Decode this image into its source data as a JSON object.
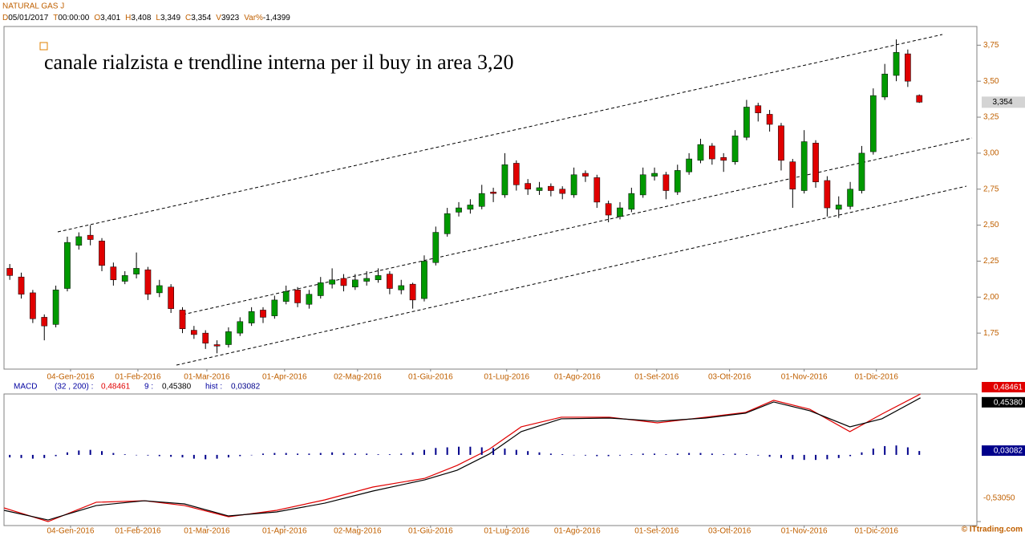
{
  "header": {
    "symbol": "NATURAL GAS J",
    "fields": [
      {
        "key": "D",
        "text": "05/01/2017"
      },
      {
        "key": "T",
        "text": "00:00:00"
      },
      {
        "key": "O",
        "text": "3,401"
      },
      {
        "key": "H",
        "text": "3,408"
      },
      {
        "key": "L",
        "text": "3,349"
      },
      {
        "key": "C",
        "text": "3,354"
      },
      {
        "key": "V",
        "text": "3923"
      },
      {
        "key": "Var%",
        "text": "-1,4399"
      }
    ]
  },
  "footer": "© ITtrading.com",
  "chart_data": [
    {
      "type": "candlestick",
      "annotation": "canale rialzista e trendline interna per il buy in area 3,20",
      "up_color": "#009900",
      "down_color": "#e00000",
      "xlim": [
        0,
        84.5
      ],
      "xticks": [
        {
          "value": 5.78,
          "label": "04-Gen-2016"
        },
        {
          "value": 11.63,
          "label": "01-Feb-2016"
        },
        {
          "value": 17.62,
          "label": "01-Mar-2016"
        },
        {
          "value": 24.37,
          "label": "01-Apr-2016"
        },
        {
          "value": 30.71,
          "label": "02-Mag-2016"
        },
        {
          "value": 37.05,
          "label": "01-Giu-2016"
        },
        {
          "value": 43.66,
          "label": "01-Lug-2016"
        },
        {
          "value": 49.79,
          "label": "01-Ago-2016"
        },
        {
          "value": 56.69,
          "label": "01-Set-2016"
        },
        {
          "value": 63.02,
          "label": "03-Ott-2016"
        },
        {
          "value": 69.5,
          "label": "01-Nov-2016"
        },
        {
          "value": 75.77,
          "label": "01-Dic-2016"
        }
      ],
      "ylim": [
        1.5,
        3.88
      ],
      "yticks": [
        {
          "value": 1.75,
          "label": "1,75"
        },
        {
          "value": 2,
          "label": "2,00"
        },
        {
          "value": 2.25,
          "label": "2,25"
        },
        {
          "value": 2.5,
          "label": "2,50"
        },
        {
          "value": 2.75,
          "label": "2,75"
        },
        {
          "value": 3,
          "label": "3,00"
        },
        {
          "value": 3.25,
          "label": "3,25"
        },
        {
          "value": 3.5,
          "label": "3,50"
        },
        {
          "value": 3.75,
          "label": "3,75"
        }
      ],
      "ohlc": [
        [
          2.2,
          2.23,
          2.12,
          2.15
        ],
        [
          2.14,
          2.17,
          1.99,
          2.02
        ],
        [
          2.03,
          2.05,
          1.82,
          1.85
        ],
        [
          1.86,
          1.88,
          1.7,
          1.8
        ],
        [
          1.81,
          2.08,
          1.79,
          2.05
        ],
        [
          2.06,
          2.42,
          2.04,
          2.38
        ],
        [
          2.36,
          2.45,
          2.33,
          2.42
        ],
        [
          2.43,
          2.5,
          2.36,
          2.4
        ],
        [
          2.39,
          2.41,
          2.18,
          2.22
        ],
        [
          2.21,
          2.24,
          2.08,
          2.12
        ],
        [
          2.11,
          2.18,
          2.09,
          2.15
        ],
        [
          2.16,
          2.31,
          2.13,
          2.2
        ],
        [
          2.19,
          2.21,
          1.98,
          2.02
        ],
        [
          2.03,
          2.12,
          2.0,
          2.08
        ],
        [
          2.07,
          2.09,
          1.89,
          1.92
        ],
        [
          1.91,
          1.93,
          1.75,
          1.78
        ],
        [
          1.77,
          1.8,
          1.71,
          1.74
        ],
        [
          1.75,
          1.77,
          1.64,
          1.68
        ],
        [
          1.67,
          1.7,
          1.61,
          1.66
        ],
        [
          1.67,
          1.79,
          1.65,
          1.76
        ],
        [
          1.75,
          1.86,
          1.73,
          1.83
        ],
        [
          1.82,
          1.93,
          1.8,
          1.9
        ],
        [
          1.91,
          1.93,
          1.82,
          1.86
        ],
        [
          1.87,
          2.01,
          1.85,
          1.98
        ],
        [
          1.97,
          2.08,
          1.95,
          2.04
        ],
        [
          2.05,
          2.07,
          1.93,
          1.96
        ],
        [
          1.95,
          2.05,
          1.92,
          2.02
        ],
        [
          2.01,
          2.14,
          1.99,
          2.1
        ],
        [
          2.09,
          2.2,
          2.06,
          2.12
        ],
        [
          2.13,
          2.16,
          2.04,
          2.08
        ],
        [
          2.07,
          2.16,
          2.05,
          2.12
        ],
        [
          2.11,
          2.18,
          2.08,
          2.13
        ],
        [
          2.12,
          2.2,
          2.1,
          2.15
        ],
        [
          2.16,
          2.18,
          2.02,
          2.06
        ],
        [
          2.05,
          2.12,
          2.02,
          2.08
        ],
        [
          2.09,
          2.1,
          1.92,
          1.98
        ],
        [
          1.99,
          2.29,
          1.97,
          2.25
        ],
        [
          2.24,
          2.49,
          2.22,
          2.45
        ],
        [
          2.44,
          2.62,
          2.42,
          2.58
        ],
        [
          2.59,
          2.66,
          2.56,
          2.62
        ],
        [
          2.61,
          2.68,
          2.58,
          2.64
        ],
        [
          2.63,
          2.78,
          2.61,
          2.72
        ],
        [
          2.73,
          2.76,
          2.66,
          2.72
        ],
        [
          2.71,
          3.0,
          2.69,
          2.92
        ],
        [
          2.93,
          2.95,
          2.74,
          2.78
        ],
        [
          2.79,
          2.82,
          2.71,
          2.75
        ],
        [
          2.74,
          2.8,
          2.71,
          2.76
        ],
        [
          2.77,
          2.79,
          2.7,
          2.74
        ],
        [
          2.75,
          2.77,
          2.68,
          2.72
        ],
        [
          2.71,
          2.9,
          2.69,
          2.85
        ],
        [
          2.86,
          2.88,
          2.8,
          2.84
        ],
        [
          2.83,
          2.85,
          2.62,
          2.66
        ],
        [
          2.65,
          2.67,
          2.52,
          2.57
        ],
        [
          2.56,
          2.66,
          2.54,
          2.62
        ],
        [
          2.61,
          2.76,
          2.59,
          2.72
        ],
        [
          2.71,
          2.9,
          2.69,
          2.85
        ],
        [
          2.84,
          2.9,
          2.81,
          2.86
        ],
        [
          2.85,
          2.87,
          2.68,
          2.74
        ],
        [
          2.73,
          2.92,
          2.71,
          2.88
        ],
        [
          2.87,
          3.0,
          2.85,
          2.96
        ],
        [
          2.95,
          3.1,
          2.93,
          3.06
        ],
        [
          3.05,
          3.07,
          2.92,
          2.96
        ],
        [
          2.97,
          3.0,
          2.87,
          2.95
        ],
        [
          2.94,
          3.16,
          2.92,
          3.12
        ],
        [
          3.11,
          3.37,
          3.09,
          3.32
        ],
        [
          3.33,
          3.35,
          3.22,
          3.28
        ],
        [
          3.27,
          3.3,
          3.15,
          3.2
        ],
        [
          3.19,
          3.21,
          2.88,
          2.95
        ],
        [
          2.94,
          2.96,
          2.62,
          2.75
        ],
        [
          2.74,
          3.16,
          2.72,
          3.08
        ],
        [
          3.07,
          3.09,
          2.76,
          2.8
        ],
        [
          2.81,
          2.84,
          2.56,
          2.62
        ],
        [
          2.61,
          2.7,
          2.55,
          2.64
        ],
        [
          2.63,
          2.8,
          2.61,
          2.75
        ],
        [
          2.74,
          3.05,
          2.72,
          3.0
        ],
        [
          3.01,
          3.45,
          2.99,
          3.4
        ],
        [
          3.39,
          3.62,
          3.37,
          3.55
        ],
        [
          3.54,
          3.79,
          3.5,
          3.7
        ],
        [
          3.69,
          3.72,
          3.46,
          3.5
        ],
        [
          3.401,
          3.408,
          3.349,
          3.354
        ]
      ]
    },
    {
      "type": "line",
      "title": "MACD",
      "xlim": [
        0,
        84.5
      ],
      "xticks": [
        {
          "value": 5.78,
          "label": "04-Gen-2016"
        },
        {
          "value": 11.63,
          "label": "01-Feb-2016"
        },
        {
          "value": 17.62,
          "label": "01-Mar-2016"
        },
        {
          "value": 24.37,
          "label": "01-Apr-2016"
        },
        {
          "value": 30.71,
          "label": "02-Mag-2016"
        },
        {
          "value": 37.05,
          "label": "01-Giu-2016"
        },
        {
          "value": 43.66,
          "label": "01-Lug-2016"
        },
        {
          "value": 49.79,
          "label": "01-Ago-2016"
        },
        {
          "value": 56.69,
          "label": "01-Set-2016"
        },
        {
          "value": 63.02,
          "label": "03-Ott-2016"
        },
        {
          "value": 69.5,
          "label": "01-Nov-2016"
        },
        {
          "value": 75.77,
          "label": "01-Dic-2016"
        }
      ],
      "ylim": [
        -0.5305,
        0.48461
      ],
      "yticks": [
        {
          "value": -0.5305,
          "label": "-0,53050"
        }
      ],
      "x": [
        0,
        3.83,
        8.01,
        12.19,
        15.67,
        19.5,
        23.68,
        27.86,
        32.03,
        36.56,
        39.35,
        42.13,
        44.92,
        48.4,
        52.58,
        56.75,
        60.93,
        64.41,
        66.85,
        69.99,
        73.47,
        76.25,
        79.6
      ],
      "series": [
        {
          "name": "(32 , 200) :",
          "color": "#e00000",
          "values": [
            -0.422,
            -0.5305,
            -0.377,
            -0.365,
            -0.403,
            -0.492,
            -0.441,
            -0.358,
            -0.256,
            -0.186,
            -0.084,
            0.044,
            0.223,
            0.3,
            0.3,
            0.255,
            0.3,
            0.338,
            0.434,
            0.363,
            0.185,
            0.325,
            0.48461
          ],
          "value_labels": [
            null,
            null,
            null,
            null,
            null,
            null,
            null,
            null,
            null,
            null,
            null,
            null,
            null,
            null,
            null,
            null,
            null,
            null,
            null,
            null,
            null,
            null,
            "0,48461"
          ]
        },
        {
          "name": "9 :",
          "color": "#000000",
          "values": [
            -0.441,
            -0.518,
            -0.403,
            -0.365,
            -0.39,
            -0.486,
            -0.454,
            -0.384,
            -0.288,
            -0.198,
            -0.122,
            0.006,
            0.185,
            0.287,
            0.293,
            0.268,
            0.293,
            0.332,
            0.421,
            0.351,
            0.223,
            0.287,
            0.4538
          ],
          "value_labels": [
            null,
            null,
            null,
            null,
            null,
            null,
            null,
            null,
            null,
            null,
            null,
            null,
            null,
            null,
            null,
            null,
            null,
            null,
            null,
            null,
            null,
            null,
            "0,45380"
          ]
        },
        {
          "name": "hist :",
          "type": "bar",
          "color": "#00008b",
          "x": [
            0.5,
            1.5,
            2.5,
            3.5,
            4.5,
            5.5,
            6.5,
            7.5,
            8.5,
            9.5,
            10.5,
            11.5,
            12.5,
            13.5,
            14.5,
            15.5,
            16.5,
            17.5,
            18.5,
            19.5,
            20.5,
            21.5,
            22.5,
            23.5,
            24.5,
            25.5,
            26.5,
            27.5,
            28.5,
            29.5,
            30.5,
            31.5,
            32.5,
            33.5,
            34.5,
            35.5,
            36.5,
            37.5,
            38.5,
            39.5,
            40.5,
            41.5,
            42.5,
            43.5,
            44.5,
            45.5,
            46.5,
            47.5,
            48.5,
            49.5,
            50.5,
            51.5,
            52.5,
            53.5,
            54.5,
            55.5,
            56.5,
            57.5,
            58.5,
            59.5,
            60.5,
            61.5,
            62.5,
            63.5,
            64.5,
            65.5,
            66.5,
            67.5,
            68.5,
            69.5,
            70.5,
            71.5,
            72.5,
            73.5,
            74.5,
            75.5,
            76.5,
            77.5,
            78.5,
            79.5
          ],
          "values": [
            -0.02,
            -0.025,
            -0.03,
            -0.025,
            -0.01,
            0.02,
            0.035,
            0.04,
            0.03,
            0.015,
            0.005,
            0.0,
            -0.005,
            -0.01,
            -0.015,
            -0.02,
            -0.03,
            -0.035,
            -0.03,
            -0.02,
            -0.01,
            0.0,
            0.01,
            0.015,
            0.015,
            0.01,
            0.01,
            0.015,
            0.02,
            0.015,
            0.01,
            0.01,
            0.005,
            0.005,
            0.01,
            0.02,
            0.04,
            0.055,
            0.06,
            0.065,
            0.065,
            0.06,
            0.055,
            0.05,
            0.04,
            0.03,
            0.02,
            0.01,
            0.005,
            0.0,
            -0.005,
            -0.01,
            -0.01,
            -0.005,
            0.005,
            0.01,
            0.01,
            0.005,
            0.01,
            0.015,
            0.015,
            0.01,
            0.005,
            0.01,
            0.005,
            -0.005,
            -0.015,
            -0.025,
            -0.035,
            -0.04,
            -0.04,
            -0.035,
            -0.025,
            -0.01,
            0.02,
            0.05,
            0.07,
            0.075,
            0.06,
            0.03082
          ],
          "value_labels": [
            null,
            null,
            null,
            null,
            null,
            null,
            null,
            null,
            null,
            null,
            null,
            null,
            null,
            null,
            null,
            null,
            null,
            null,
            null,
            null,
            null,
            null,
            null,
            null,
            null,
            null,
            null,
            null,
            null,
            null,
            null,
            null,
            null,
            null,
            null,
            null,
            null,
            null,
            null,
            null,
            null,
            null,
            null,
            null,
            null,
            null,
            null,
            null,
            null,
            null,
            null,
            null,
            null,
            null,
            null,
            null,
            null,
            null,
            null,
            null,
            null,
            null,
            null,
            null,
            null,
            null,
            null,
            null,
            null,
            null,
            null,
            null,
            null,
            null,
            null,
            null,
            null,
            null,
            null,
            "0,03082"
          ]
        }
      ]
    }
  ]
}
